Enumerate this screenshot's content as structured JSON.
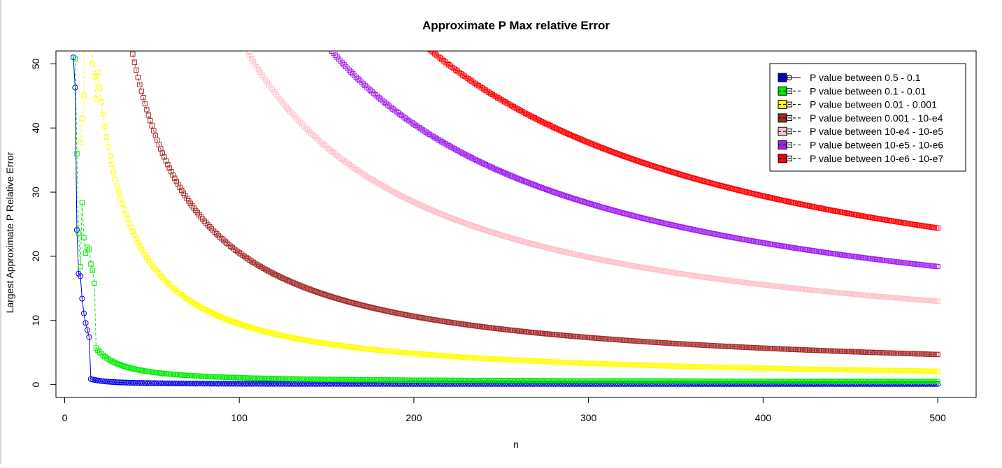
{
  "chart_data": {
    "type": "line",
    "title": "Approximate P Max relative Error",
    "xlabel": "n",
    "ylabel": "Largest Approximate P Relative Error",
    "xlim": [
      -5,
      522
    ],
    "ylim": [
      -2,
      52
    ],
    "xticks": [
      "0",
      "100",
      "200",
      "300",
      "400",
      "500"
    ],
    "yticks": [
      "0",
      "10",
      "20",
      "30",
      "40",
      "50"
    ],
    "legend_position": "top-right",
    "x": {
      "start": 5,
      "end": 500,
      "step": 1
    },
    "series": [
      {
        "name": "P value between 0.5 - 0.1",
        "color": "#0000dd",
        "marker": "circle",
        "line": "solid",
        "k": 45,
        "p": 1.5,
        "start": 5,
        "early_points": [
          [
            5,
            51
          ],
          [
            6,
            46.3
          ],
          [
            7,
            24.1
          ],
          [
            8,
            17.3
          ],
          [
            9,
            16.9
          ],
          [
            10,
            13.4
          ],
          [
            11,
            11.1
          ],
          [
            12,
            9.6
          ],
          [
            13,
            8.5
          ],
          [
            14,
            7.4
          ]
        ],
        "end_value": 0.1
      },
      {
        "name": "P value between 0.1 - 0.01",
        "color": "#00ee00",
        "marker": "square",
        "line": "dashed",
        "k": 170,
        "p": 1.2,
        "start": 6,
        "early_points": [
          [
            6,
            50.8
          ],
          [
            7,
            36
          ],
          [
            8,
            23.6
          ],
          [
            9,
            18.4
          ],
          [
            10,
            28.4
          ],
          [
            11,
            22.9
          ],
          [
            12,
            20.5
          ],
          [
            13,
            21.4
          ],
          [
            14,
            21.1
          ],
          [
            15,
            18.8
          ],
          [
            16,
            17.8
          ],
          [
            17,
            15.8
          ]
        ],
        "end_value": 0.5
      },
      {
        "name": "P value between 0.01 - 0.001",
        "color": "#ffff00",
        "marker": "square",
        "line": "dashed",
        "k": 920,
        "p": 1.0,
        "start": 9,
        "early_points": [
          [
            9,
            37.8
          ],
          [
            10,
            41.5
          ],
          [
            11,
            45
          ],
          [
            16,
            50
          ],
          [
            17,
            48
          ],
          [
            18,
            44.5
          ]
        ],
        "end_value": 2.1
      },
      {
        "name": "P value between 0.001 - 10-e4",
        "color": "#a52a2a",
        "marker": "square",
        "line": "dashed",
        "k": 1980,
        "p": 1.0,
        "start": 34,
        "end_value": 4.7
      },
      {
        "name": "P value between 10-e4 - 10-e5",
        "color": "#ffc0cb",
        "marker": "square",
        "line": "dashed",
        "k": 5150,
        "p": 1.0,
        "start": 97,
        "end_value": 13.0
      },
      {
        "name": "P value between 10-e5 - 10-e6",
        "color": "#a020f0",
        "marker": "square",
        "line": "dashed",
        "k": 7400,
        "p": 1.0,
        "start": 140,
        "end_value": 18.4
      },
      {
        "name": "P value between 10-e6 - 10-e7",
        "color": "#ff0000",
        "marker": "square",
        "line": "dashed",
        "k": 10000,
        "p": 1.0,
        "start": 188,
        "end_value": 24.4
      }
    ]
  }
}
